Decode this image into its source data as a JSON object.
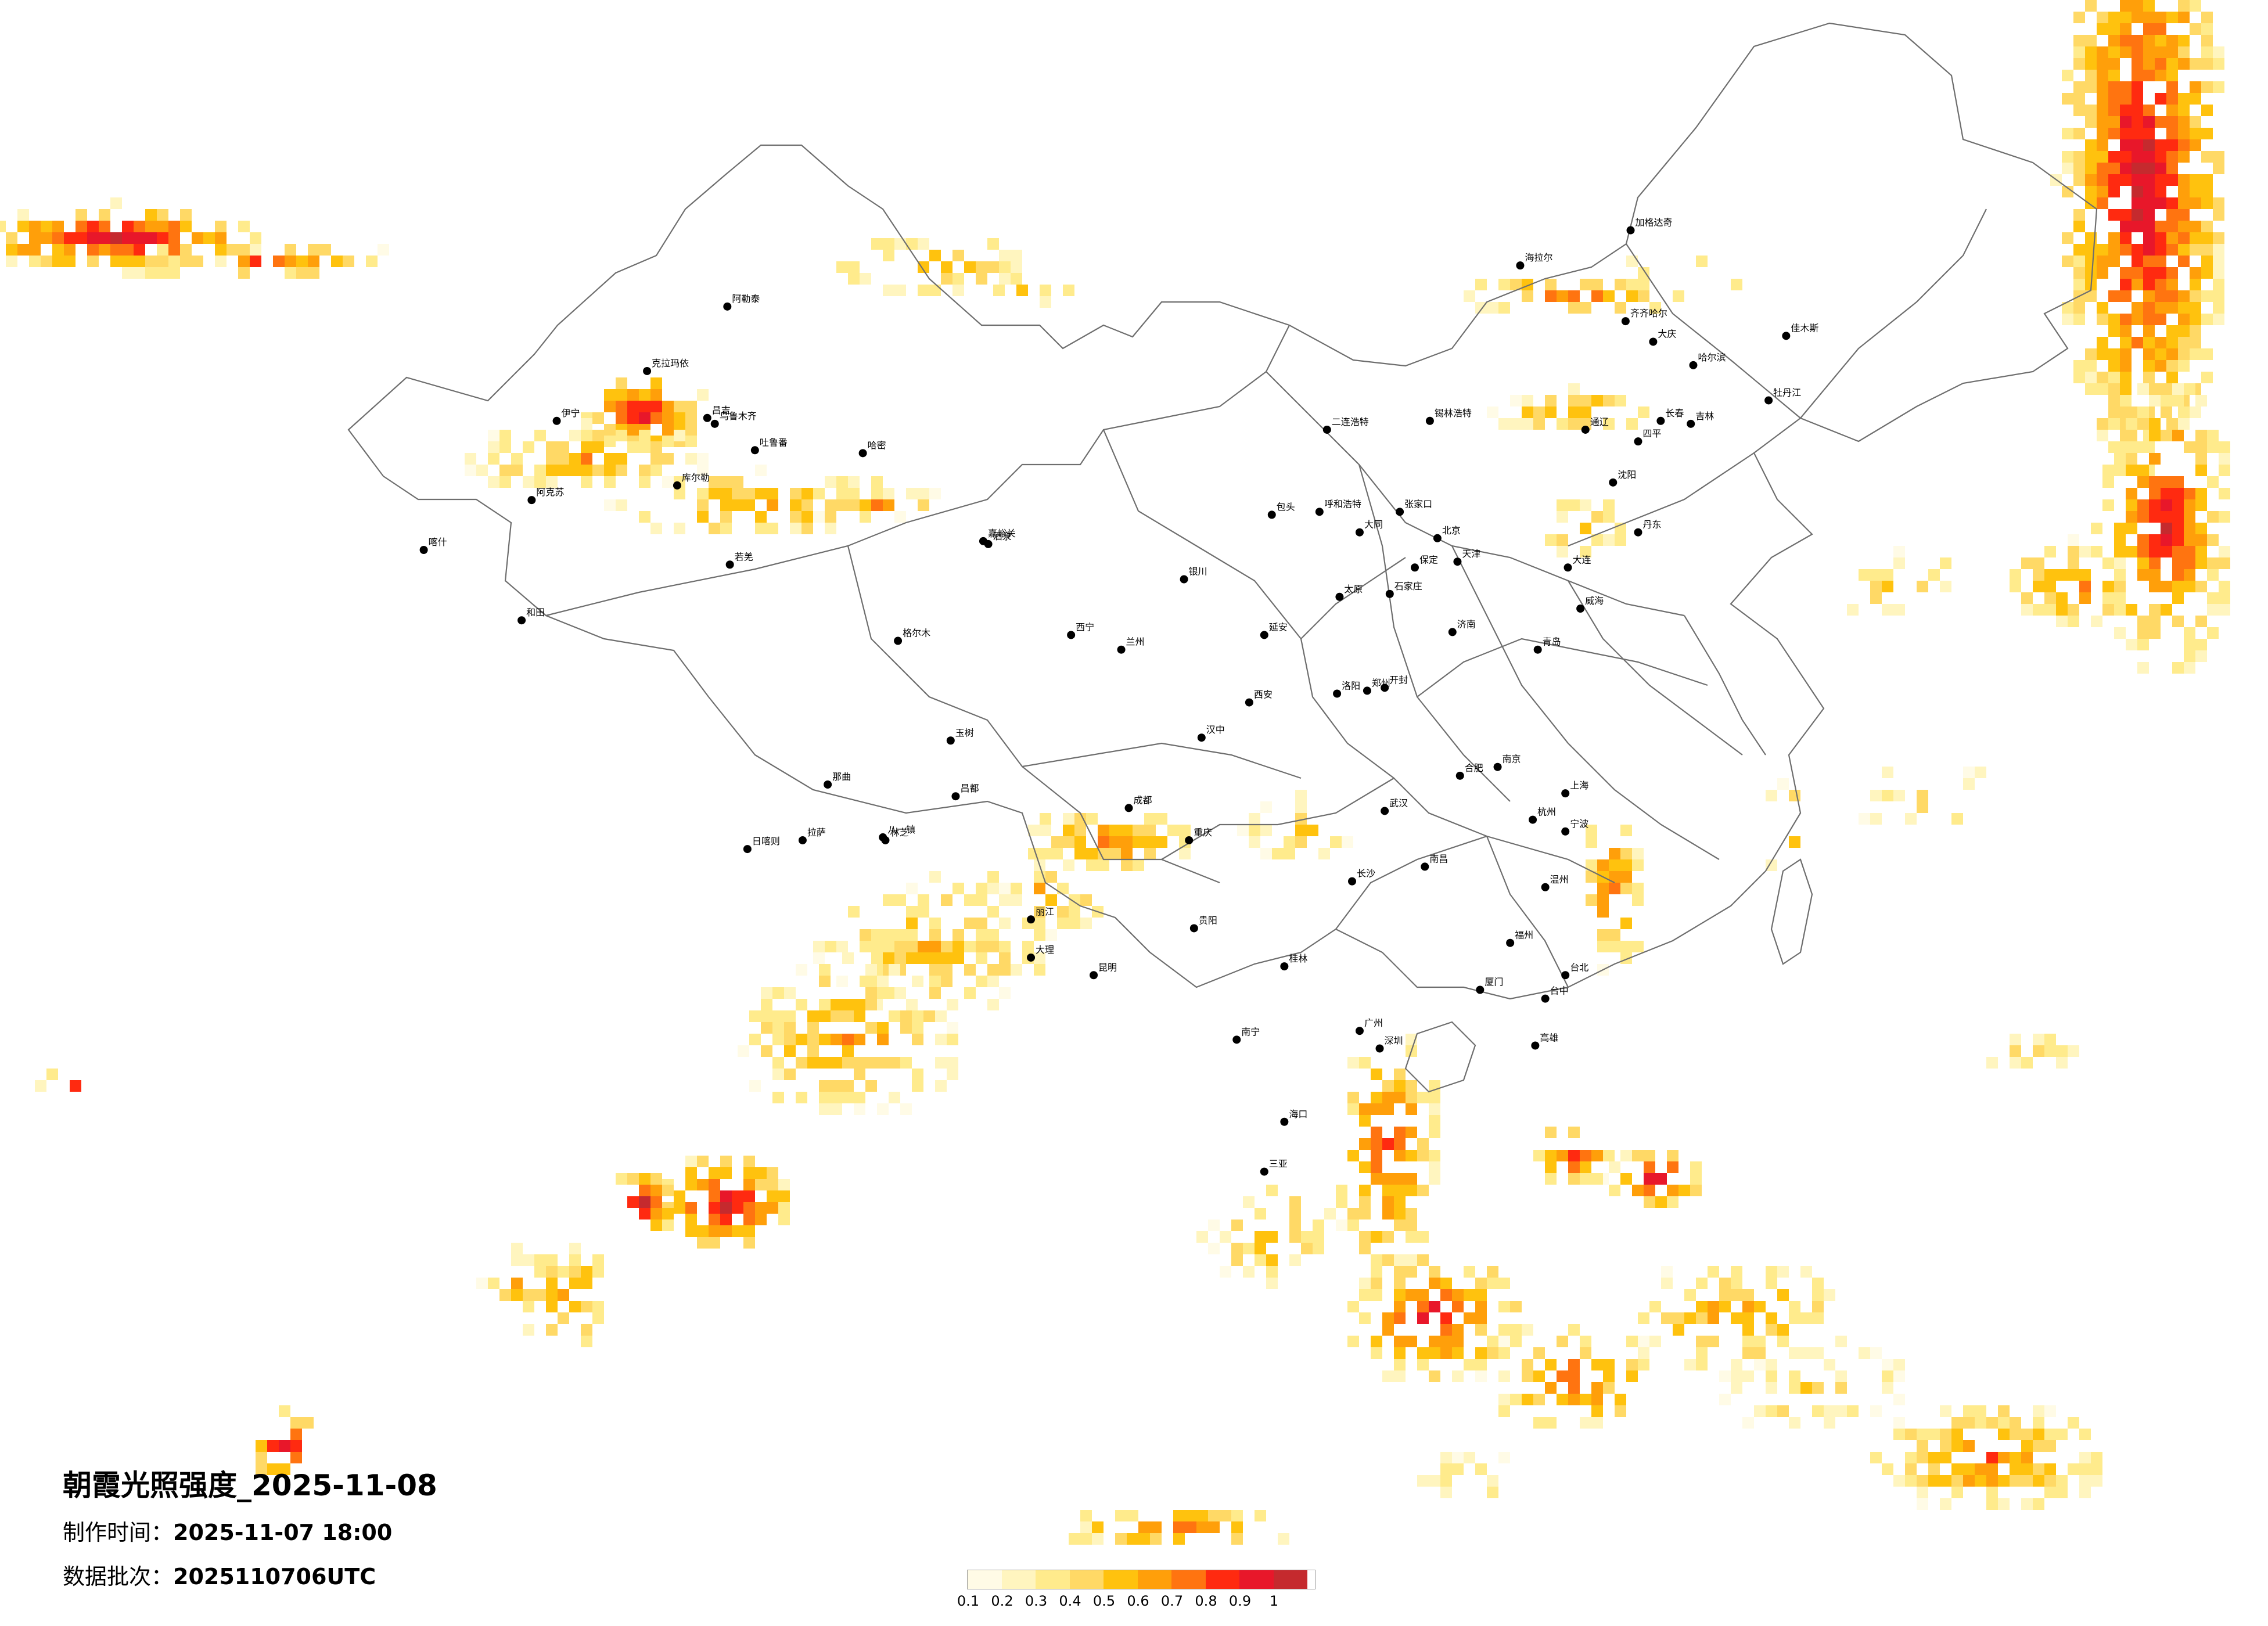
{
  "title": "朝霞光照强度_2025-11-08",
  "meta": {
    "made_label": "制作时间：",
    "made_value": "2025-11-07 18:00",
    "batch_label": "数据批次：",
    "batch_value": "2025110706UTC"
  },
  "legend": {
    "colors": [
      "#fffbe6",
      "#fff5bf",
      "#ffeb8c",
      "#ffd966",
      "#ffc20e",
      "#ff9f0a",
      "#ff7410",
      "#ff2a10",
      "#e8172a",
      "#c52a2e"
    ],
    "ticks": [
      "0.1",
      "0.2",
      "0.3",
      "0.4",
      "0.5",
      "0.6",
      "0.7",
      "0.8",
      "0.9",
      "1"
    ]
  },
  "cities": [
    {
      "name": "克拉玛依",
      "lon": 84.9,
      "lat": 45.6
    },
    {
      "name": "伊宁",
      "lon": 81.3,
      "lat": 43.9
    },
    {
      "name": "昌吉",
      "lon": 87.3,
      "lat": 44.0
    },
    {
      "name": "乌鲁木齐",
      "lon": 87.6,
      "lat": 43.8
    },
    {
      "name": "吐鲁番",
      "lon": 89.2,
      "lat": 42.9
    },
    {
      "name": "哈密",
      "lon": 93.5,
      "lat": 42.8
    },
    {
      "name": "库尔勒",
      "lon": 86.1,
      "lat": 41.7
    },
    {
      "name": "阿克苏",
      "lon": 80.3,
      "lat": 41.2
    },
    {
      "name": "喀什",
      "lon": 76.0,
      "lat": 39.5
    },
    {
      "name": "和田",
      "lon": 79.9,
      "lat": 37.1
    },
    {
      "name": "若羌",
      "lon": 88.2,
      "lat": 39.0
    },
    {
      "name": "嘉峪关",
      "lon": 98.3,
      "lat": 39.8
    },
    {
      "name": "酒泉",
      "lon": 98.5,
      "lat": 39.7
    },
    {
      "name": "格尔木",
      "lon": 94.9,
      "lat": 36.4
    },
    {
      "name": "西宁",
      "lon": 101.8,
      "lat": 36.6
    },
    {
      "name": "兰州",
      "lon": 103.8,
      "lat": 36.1
    },
    {
      "name": "银川",
      "lon": 106.3,
      "lat": 38.5
    },
    {
      "name": "呼和浩特",
      "lon": 111.7,
      "lat": 40.8
    },
    {
      "name": "包头",
      "lon": 109.8,
      "lat": 40.7
    },
    {
      "name": "二连浩特",
      "lon": 112.0,
      "lat": 43.6
    },
    {
      "name": "锡林浩特",
      "lon": 116.1,
      "lat": 43.9
    },
    {
      "name": "海拉尔",
      "lon": 119.7,
      "lat": 49.2
    },
    {
      "name": "加格达奇",
      "lon": 124.1,
      "lat": 50.4
    },
    {
      "name": "齐齐哈尔",
      "lon": 123.9,
      "lat": 47.3
    },
    {
      "name": "大庆",
      "lon": 125.0,
      "lat": 46.6
    },
    {
      "name": "哈尔滨",
      "lon": 126.6,
      "lat": 45.8
    },
    {
      "name": "佳木斯",
      "lon": 130.3,
      "lat": 46.8
    },
    {
      "name": "牡丹江",
      "lon": 129.6,
      "lat": 44.6
    },
    {
      "name": "长春",
      "lon": 125.3,
      "lat": 43.9
    },
    {
      "name": "吉林",
      "lon": 126.5,
      "lat": 43.8
    },
    {
      "name": "四平",
      "lon": 124.4,
      "lat": 43.2
    },
    {
      "name": "通辽",
      "lon": 122.3,
      "lat": 43.6
    },
    {
      "name": "沈阳",
      "lon": 123.4,
      "lat": 41.8
    },
    {
      "name": "大连",
      "lon": 121.6,
      "lat": 38.9
    },
    {
      "name": "丹东",
      "lon": 124.4,
      "lat": 40.1
    },
    {
      "name": "北京",
      "lon": 116.4,
      "lat": 39.9
    },
    {
      "name": "天津",
      "lon": 117.2,
      "lat": 39.1
    },
    {
      "name": "张家口",
      "lon": 114.9,
      "lat": 40.8
    },
    {
      "name": "石家庄",
      "lon": 114.5,
      "lat": 38.0
    },
    {
      "name": "保定",
      "lon": 115.5,
      "lat": 38.9
    },
    {
      "name": "太原",
      "lon": 112.5,
      "lat": 37.9
    },
    {
      "name": "大同",
      "lon": 113.3,
      "lat": 40.1
    },
    {
      "name": "济南",
      "lon": 117.0,
      "lat": 36.7
    },
    {
      "name": "青岛",
      "lon": 120.4,
      "lat": 36.1
    },
    {
      "name": "威海",
      "lon": 122.1,
      "lat": 37.5
    },
    {
      "name": "郑州",
      "lon": 113.6,
      "lat": 34.7
    },
    {
      "name": "洛阳",
      "lon": 112.4,
      "lat": 34.6
    },
    {
      "name": "开封",
      "lon": 114.3,
      "lat": 34.8
    },
    {
      "name": "西安",
      "lon": 108.9,
      "lat": 34.3
    },
    {
      "name": "延安",
      "lon": 109.5,
      "lat": 36.6
    },
    {
      "name": "汉中",
      "lon": 107.0,
      "lat": 33.1
    },
    {
      "name": "成都",
      "lon": 104.1,
      "lat": 30.7
    },
    {
      "name": "重庆",
      "lon": 106.5,
      "lat": 29.6
    },
    {
      "name": "武汉",
      "lon": 114.3,
      "lat": 30.6
    },
    {
      "name": "合肥",
      "lon": 117.3,
      "lat": 31.8
    },
    {
      "name": "南京",
      "lon": 118.8,
      "lat": 32.1
    },
    {
      "name": "上海",
      "lon": 121.5,
      "lat": 31.2
    },
    {
      "name": "杭州",
      "lon": 120.2,
      "lat": 30.3
    },
    {
      "name": "宁波",
      "lon": 121.5,
      "lat": 29.9
    },
    {
      "name": "温州",
      "lon": 120.7,
      "lat": 28.0
    },
    {
      "name": "福州",
      "lon": 119.3,
      "lat": 26.1
    },
    {
      "name": "厦门",
      "lon": 118.1,
      "lat": 24.5
    },
    {
      "name": "南昌",
      "lon": 115.9,
      "lat": 28.7
    },
    {
      "name": "长沙",
      "lon": 113.0,
      "lat": 28.2
    },
    {
      "name": "贵阳",
      "lon": 106.7,
      "lat": 26.6
    },
    {
      "name": "昆明",
      "lon": 102.7,
      "lat": 25.0
    },
    {
      "name": "大理",
      "lon": 100.2,
      "lat": 25.6
    },
    {
      "name": "丽江",
      "lon": 100.2,
      "lat": 26.9
    },
    {
      "name": "广州",
      "lon": 113.3,
      "lat": 23.1
    },
    {
      "name": "深圳",
      "lon": 114.1,
      "lat": 22.5
    },
    {
      "name": "南宁",
      "lon": 108.4,
      "lat": 22.8
    },
    {
      "name": "桂林",
      "lon": 110.3,
      "lat": 25.3
    },
    {
      "name": "海口",
      "lon": 110.3,
      "lat": 20.0
    },
    {
      "name": "三亚",
      "lon": 109.5,
      "lat": 18.3
    },
    {
      "name": "台北",
      "lon": 121.5,
      "lat": 25.0
    },
    {
      "name": "台中",
      "lon": 120.7,
      "lat": 24.2
    },
    {
      "name": "高雄",
      "lon": 120.3,
      "lat": 22.6
    },
    {
      "name": "拉萨",
      "lon": 91.1,
      "lat": 29.6
    },
    {
      "name": "日喀则",
      "lon": 88.9,
      "lat": 29.3
    },
    {
      "name": "林芝",
      "lon": 94.4,
      "lat": 29.6
    },
    {
      "name": "八一镇",
      "lon": 94.3,
      "lat": 29.7
    },
    {
      "name": "昌都",
      "lon": 97.2,
      "lat": 31.1
    },
    {
      "name": "那曲",
      "lon": 92.1,
      "lat": 31.5
    },
    {
      "name": "玉树",
      "lon": 97.0,
      "lat": 33.0
    },
    {
      "name": "阿勒泰",
      "lon": 88.1,
      "lat": 47.8
    }
  ]
}
